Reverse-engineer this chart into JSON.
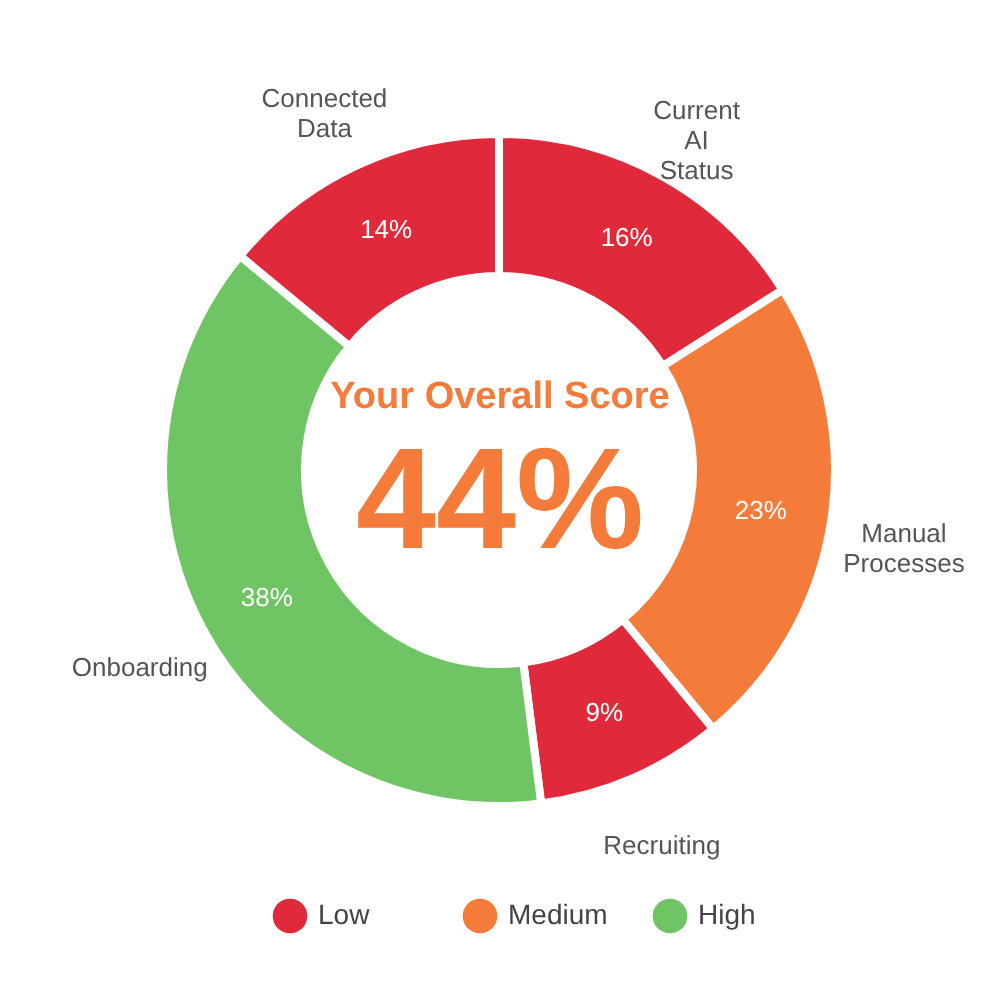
{
  "chart_data": {
    "type": "donut",
    "categories": [
      "Current AI Status",
      "Manual Processes",
      "Recruiting",
      "Onboarding",
      "Connected Data"
    ],
    "values": [
      16,
      23,
      9,
      38,
      14
    ],
    "colors": [
      "#e02a3b",
      "#f47b3a",
      "#e02a3b",
      "#6fc464",
      "#e02a3b"
    ],
    "value_labels": [
      "16%",
      "23%",
      "9%",
      "38%",
      "14%"
    ],
    "annotations": [
      "Your Overall Score",
      "44%",
      "Low",
      "Medium",
      "High"
    ]
  }
}
